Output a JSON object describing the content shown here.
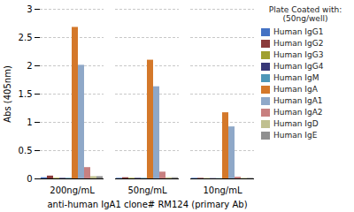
{
  "chart_data": {
    "type": "bar",
    "categories": [
      "200ng/mL",
      "50ng/mL",
      "10ng/mL"
    ],
    "series": [
      {
        "name": "Human IgG1",
        "color": "#4472C4",
        "values": [
          0.02,
          0.01,
          0.01
        ]
      },
      {
        "name": "Human IgG2",
        "color": "#8B3A3A",
        "values": [
          0.05,
          0.02,
          0.01
        ]
      },
      {
        "name": "Human IgG3",
        "color": "#A0A030",
        "values": [
          0.01,
          0.01,
          0.005
        ]
      },
      {
        "name": "Human IgG4",
        "color": "#383878",
        "values": [
          0.01,
          0.01,
          0.005
        ]
      },
      {
        "name": "Human IgM",
        "color": "#4E97B8",
        "values": [
          0.01,
          0.01,
          0.005
        ]
      },
      {
        "name": "Human IgA",
        "color": "#D4782A",
        "values": [
          2.68,
          2.1,
          1.17
        ]
      },
      {
        "name": "Human IgA1",
        "color": "#8FA8C8",
        "values": [
          2.01,
          1.63,
          0.92
        ]
      },
      {
        "name": "Human IgA2",
        "color": "#C88080",
        "values": [
          0.2,
          0.12,
          0.03
        ]
      },
      {
        "name": "Human IgD",
        "color": "#C0C090",
        "values": [
          0.04,
          0.02,
          0.01
        ]
      },
      {
        "name": "Human IgE",
        "color": "#909090",
        "values": [
          0.04,
          0.02,
          0.01
        ]
      }
    ],
    "xlabel": "anti-human IgA1 clone# RM124 (primary Ab)",
    "ylabel": "Abs (405nm)",
    "legend_title": "Plate Coated with:\n(50ng/well)",
    "ylim": [
      0,
      3.0
    ],
    "yticks": [
      0,
      0.5,
      1,
      1.5,
      2,
      2.5,
      3
    ],
    "grid": true,
    "legend": "right"
  }
}
